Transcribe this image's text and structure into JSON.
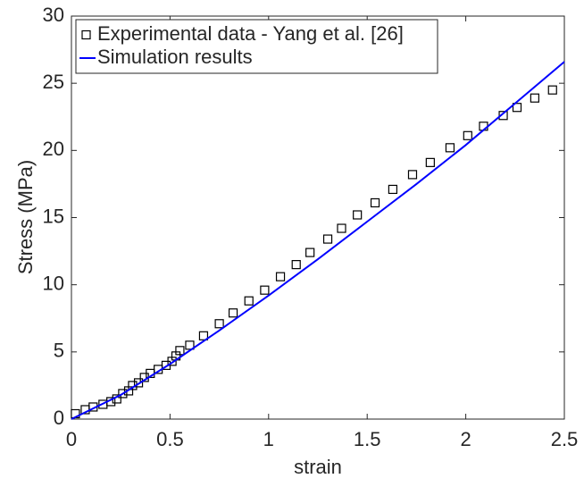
{
  "chart_data": {
    "type": "scatter-line",
    "xlabel": "strain",
    "ylabel": "Stress (MPa)",
    "xlim": [
      0,
      2.5
    ],
    "ylim": [
      0,
      30
    ],
    "xticks": [
      0,
      0.5,
      1,
      1.5,
      2,
      2.5
    ],
    "yticks": [
      0,
      5,
      10,
      15,
      20,
      25,
      30
    ],
    "legend": "upper-left",
    "series": [
      {
        "name": "Experimental data - Yang et al. [26]",
        "kind": "markers",
        "color": "#000000",
        "x": [
          0.02,
          0.07,
          0.11,
          0.16,
          0.2,
          0.23,
          0.26,
          0.29,
          0.31,
          0.34,
          0.37,
          0.4,
          0.44,
          0.48,
          0.51,
          0.53,
          0.55,
          0.6,
          0.67,
          0.75,
          0.82,
          0.9,
          0.98,
          1.06,
          1.14,
          1.21,
          1.3,
          1.37,
          1.45,
          1.54,
          1.63,
          1.73,
          1.82,
          1.92,
          2.01,
          2.09,
          2.19,
          2.26,
          2.35,
          2.44
        ],
        "values": [
          0.4,
          0.7,
          0.9,
          1.1,
          1.3,
          1.5,
          1.9,
          2.1,
          2.5,
          2.7,
          3.1,
          3.4,
          3.7,
          4.0,
          4.3,
          4.7,
          5.1,
          5.5,
          6.2,
          7.1,
          7.9,
          8.8,
          9.6,
          10.6,
          11.5,
          12.4,
          13.4,
          14.2,
          15.2,
          16.1,
          17.1,
          18.2,
          19.1,
          20.2,
          21.1,
          21.8,
          22.6,
          23.2,
          23.9,
          24.5
        ]
      },
      {
        "name": "Simulation results",
        "kind": "line",
        "color": "#0000ff",
        "x": [
          0,
          0.25,
          0.5,
          0.75,
          1,
          1.25,
          1.5,
          1.75,
          2,
          2.25,
          2.5
        ],
        "values": [
          0,
          1.8,
          4.1,
          6.6,
          9.2,
          11.9,
          14.7,
          17.5,
          20.4,
          23.5,
          26.6
        ]
      }
    ]
  }
}
